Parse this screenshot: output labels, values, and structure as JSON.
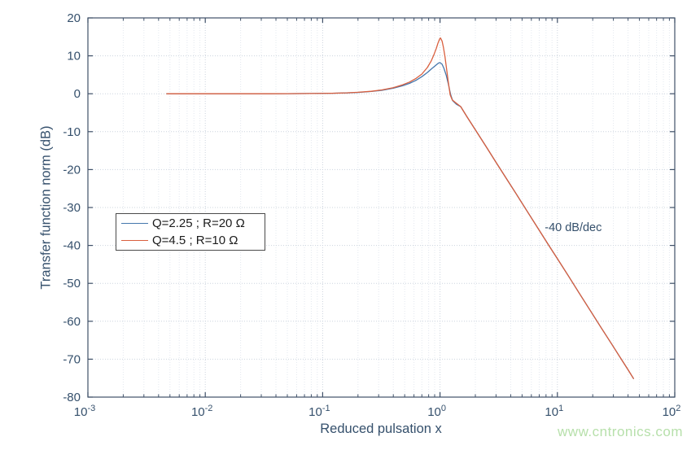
{
  "watermark": {
    "text": "www.cntronics.com",
    "color": "#b7e0ab"
  },
  "colors": {
    "background": "#ffffff",
    "axis_box": "#3f5068",
    "tick": "#3f5068",
    "axis_text": "#35506c",
    "grid_major": "#ccd4de",
    "grid_minor": "#e3e8ef",
    "legend_border": "#4a4a4a",
    "legend_text": "#1c1c1c"
  },
  "chart_data": {
    "type": "line",
    "title": "",
    "xlabel": "Reduced pulsation x",
    "ylabel": "Transfer function norm (dB)",
    "x_scale": "log",
    "xlim": [
      0.001,
      100
    ],
    "ylim": [
      -80,
      20
    ],
    "x_tick_exponents": [
      -3,
      -2,
      -1,
      0,
      1,
      2
    ],
    "y_ticks": [
      20,
      10,
      0,
      -10,
      -20,
      -30,
      -40,
      -50,
      -60,
      -70,
      -80
    ],
    "grid": "on",
    "minor_grid_x": "on",
    "legend_position": "middle-left",
    "annotation": {
      "text": "-40 dB/dec",
      "x": 7.8,
      "y_db": -35.3
    },
    "series": [
      {
        "name": "Q=2.25 ; R=20 Ω",
        "color": "#4577ad",
        "points": [
          [
            0.0047,
            0
          ],
          [
            0.008,
            0
          ],
          [
            0.013,
            0
          ],
          [
            0.02,
            0
          ],
          [
            0.035,
            0.01
          ],
          [
            0.05,
            0.02
          ],
          [
            0.08,
            0.06
          ],
          [
            0.12,
            0.12
          ],
          [
            0.16,
            0.22
          ],
          [
            0.2,
            0.35
          ],
          [
            0.26,
            0.6
          ],
          [
            0.32,
            0.9
          ],
          [
            0.4,
            1.45
          ],
          [
            0.48,
            2.1
          ],
          [
            0.55,
            2.75
          ],
          [
            0.62,
            3.5
          ],
          [
            0.7,
            4.5
          ],
          [
            0.78,
            5.6
          ],
          [
            0.85,
            6.6
          ],
          [
            0.92,
            7.5
          ],
          [
            0.97,
            8.1
          ],
          [
            1.0,
            8.2
          ],
          [
            1.04,
            7.8
          ],
          [
            1.08,
            6.7
          ],
          [
            1.13,
            4.8
          ],
          [
            1.18,
            2.4
          ],
          [
            1.23,
            -0.2
          ],
          [
            1.28,
            -1.8
          ],
          [
            1.38,
            -2.8
          ],
          [
            1.5,
            -3.4
          ],
          [
            1.7,
            -6.1
          ],
          [
            2,
            -9.5
          ],
          [
            2.5,
            -14.2
          ],
          [
            3,
            -18.1
          ],
          [
            3.7,
            -22.5
          ],
          [
            4.5,
            -26.6
          ],
          [
            5.5,
            -30.9
          ],
          [
            7,
            -36
          ],
          [
            8.5,
            -40.1
          ],
          [
            10,
            -43.5
          ],
          [
            12.5,
            -48.2
          ],
          [
            15.5,
            -52.8
          ],
          [
            19,
            -57.1
          ],
          [
            23.5,
            -61.6
          ],
          [
            29,
            -66
          ],
          [
            35,
            -70
          ],
          [
            40,
            -72.8
          ],
          [
            44.5,
            -75.1
          ]
        ]
      },
      {
        "name": "Q=4.5 ; R=10 Ω",
        "color": "#d95f3e",
        "points": [
          [
            0.0047,
            0
          ],
          [
            0.008,
            0
          ],
          [
            0.013,
            0
          ],
          [
            0.02,
            0
          ],
          [
            0.035,
            0.01
          ],
          [
            0.05,
            0.02
          ],
          [
            0.08,
            0.06
          ],
          [
            0.12,
            0.13
          ],
          [
            0.16,
            0.24
          ],
          [
            0.2,
            0.38
          ],
          [
            0.26,
            0.65
          ],
          [
            0.32,
            1.0
          ],
          [
            0.4,
            1.6
          ],
          [
            0.48,
            2.35
          ],
          [
            0.55,
            3.1
          ],
          [
            0.62,
            4.0
          ],
          [
            0.7,
            5.2
          ],
          [
            0.78,
            6.9
          ],
          [
            0.84,
            8.6
          ],
          [
            0.89,
            10.4
          ],
          [
            0.93,
            12.0
          ],
          [
            0.96,
            13.3
          ],
          [
            0.99,
            14.4
          ],
          [
            1.01,
            14.7
          ],
          [
            1.04,
            13.9
          ],
          [
            1.07,
            12.2
          ],
          [
            1.1,
            9.9
          ],
          [
            1.14,
            6.3
          ],
          [
            1.18,
            2.7
          ],
          [
            1.22,
            -0.3
          ],
          [
            1.27,
            -1.6
          ],
          [
            1.35,
            -2.3
          ],
          [
            1.5,
            -3.4
          ],
          [
            1.7,
            -6.1
          ],
          [
            2,
            -9.5
          ],
          [
            2.5,
            -14.2
          ],
          [
            3,
            -18.1
          ],
          [
            3.7,
            -22.5
          ],
          [
            4.5,
            -26.6
          ],
          [
            5.5,
            -30.9
          ],
          [
            7,
            -36
          ],
          [
            8.5,
            -40.1
          ],
          [
            10,
            -43.5
          ],
          [
            12.5,
            -48.2
          ],
          [
            15.5,
            -52.8
          ],
          [
            19,
            -57.1
          ],
          [
            23.5,
            -61.6
          ],
          [
            29,
            -66
          ],
          [
            35,
            -70
          ],
          [
            40,
            -72.8
          ],
          [
            44.5,
            -75.1
          ]
        ]
      }
    ]
  }
}
